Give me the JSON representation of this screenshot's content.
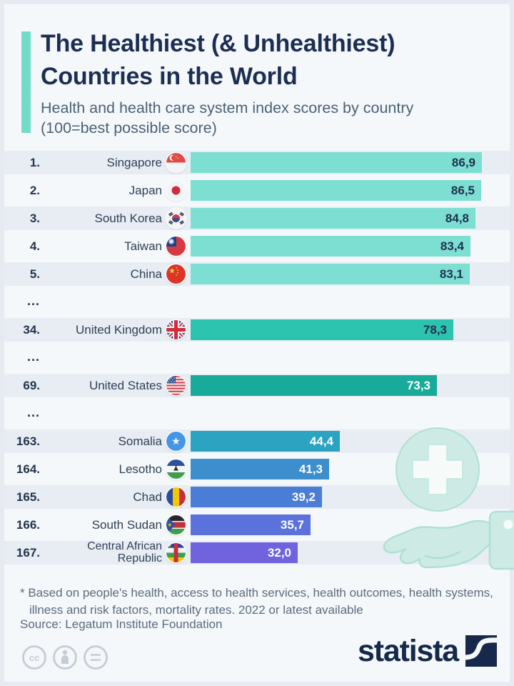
{
  "header": {
    "title_line1": "The Healthiest (& Unhealthiest)",
    "title_line2": "Countries in the World",
    "subtitle_line1": "Health and health care system index scores by country",
    "subtitle_line2": "(100=best possible score)",
    "accent_color": "#73dcc9"
  },
  "chart_data": {
    "type": "bar",
    "orientation": "horizontal",
    "title": "The Healthiest (& Unhealthiest) Countries in the World",
    "subtitle": "Health and health care system index scores by country (100=best possible score)",
    "value_range": [
      0,
      100
    ],
    "gap_label": "...",
    "rows": [
      {
        "rank": "1.",
        "country": "Singapore",
        "value": 86.9,
        "value_label": "86,9",
        "flag": "singapore-flag",
        "bar_color": "#7cdfd2",
        "value_color": "#1e3050"
      },
      {
        "rank": "2.",
        "country": "Japan",
        "value": 86.5,
        "value_label": "86,5",
        "flag": "japan-flag",
        "bar_color": "#7cdfd2",
        "value_color": "#1e3050"
      },
      {
        "rank": "3.",
        "country": "South Korea",
        "value": 84.8,
        "value_label": "84,8",
        "flag": "south-korea-flag",
        "bar_color": "#7cdfd2",
        "value_color": "#1e3050"
      },
      {
        "rank": "4.",
        "country": "Taiwan",
        "value": 83.4,
        "value_label": "83,4",
        "flag": "taiwan-flag",
        "bar_color": "#7cdfd2",
        "value_color": "#1e3050"
      },
      {
        "rank": "5.",
        "country": "China",
        "value": 83.1,
        "value_label": "83,1",
        "flag": "china-flag",
        "bar_color": "#7cdfd2",
        "value_color": "#1e3050"
      },
      {
        "gap": true,
        "label": "..."
      },
      {
        "rank": "34.",
        "country": "United Kingdom",
        "value": 78.3,
        "value_label": "78,3",
        "flag": "uk-flag",
        "bar_color": "#2cc4ae",
        "value_color": "#1e3050"
      },
      {
        "gap": true,
        "label": "..."
      },
      {
        "rank": "69.",
        "country": "United States",
        "value": 73.3,
        "value_label": "73,3",
        "flag": "us-flag",
        "bar_color": "#18ab99",
        "value_color": "#ffffff"
      },
      {
        "gap": true,
        "label": "..."
      },
      {
        "rank": "163.",
        "country": "Somalia",
        "value": 44.4,
        "value_label": "44,4",
        "flag": "somalia-flag",
        "bar_color": "#2ba3c1",
        "value_color": "#ffffff"
      },
      {
        "rank": "164.",
        "country": "Lesotho",
        "value": 41.3,
        "value_label": "41,3",
        "flag": "lesotho-flag",
        "bar_color": "#3c8ecd",
        "value_color": "#ffffff"
      },
      {
        "rank": "165.",
        "country": "Chad",
        "value": 39.2,
        "value_label": "39,2",
        "flag": "chad-flag",
        "bar_color": "#4a7dd6",
        "value_color": "#ffffff"
      },
      {
        "rank": "166.",
        "country": "South Sudan",
        "value": 35.7,
        "value_label": "35,7",
        "flag": "south-sudan-flag",
        "bar_color": "#5b71dc",
        "value_color": "#ffffff"
      },
      {
        "rank": "167.",
        "country": "Central African Republic",
        "value": 32.0,
        "value_label": "32,0",
        "flag": "central-african-republic-flag",
        "bar_color": "#7063de",
        "value_color": "#ffffff"
      }
    ]
  },
  "footer": {
    "note": "* Based on people's health, access to health services, health outcomes, health systems, illness and risk factors, mortality rates. 2022 or latest available",
    "source": "Source: Legatum Institute Foundation",
    "brand": "statista",
    "brand_color": "#16294b",
    "license_icons": [
      "cc",
      "attribution",
      "no-derivatives"
    ]
  }
}
